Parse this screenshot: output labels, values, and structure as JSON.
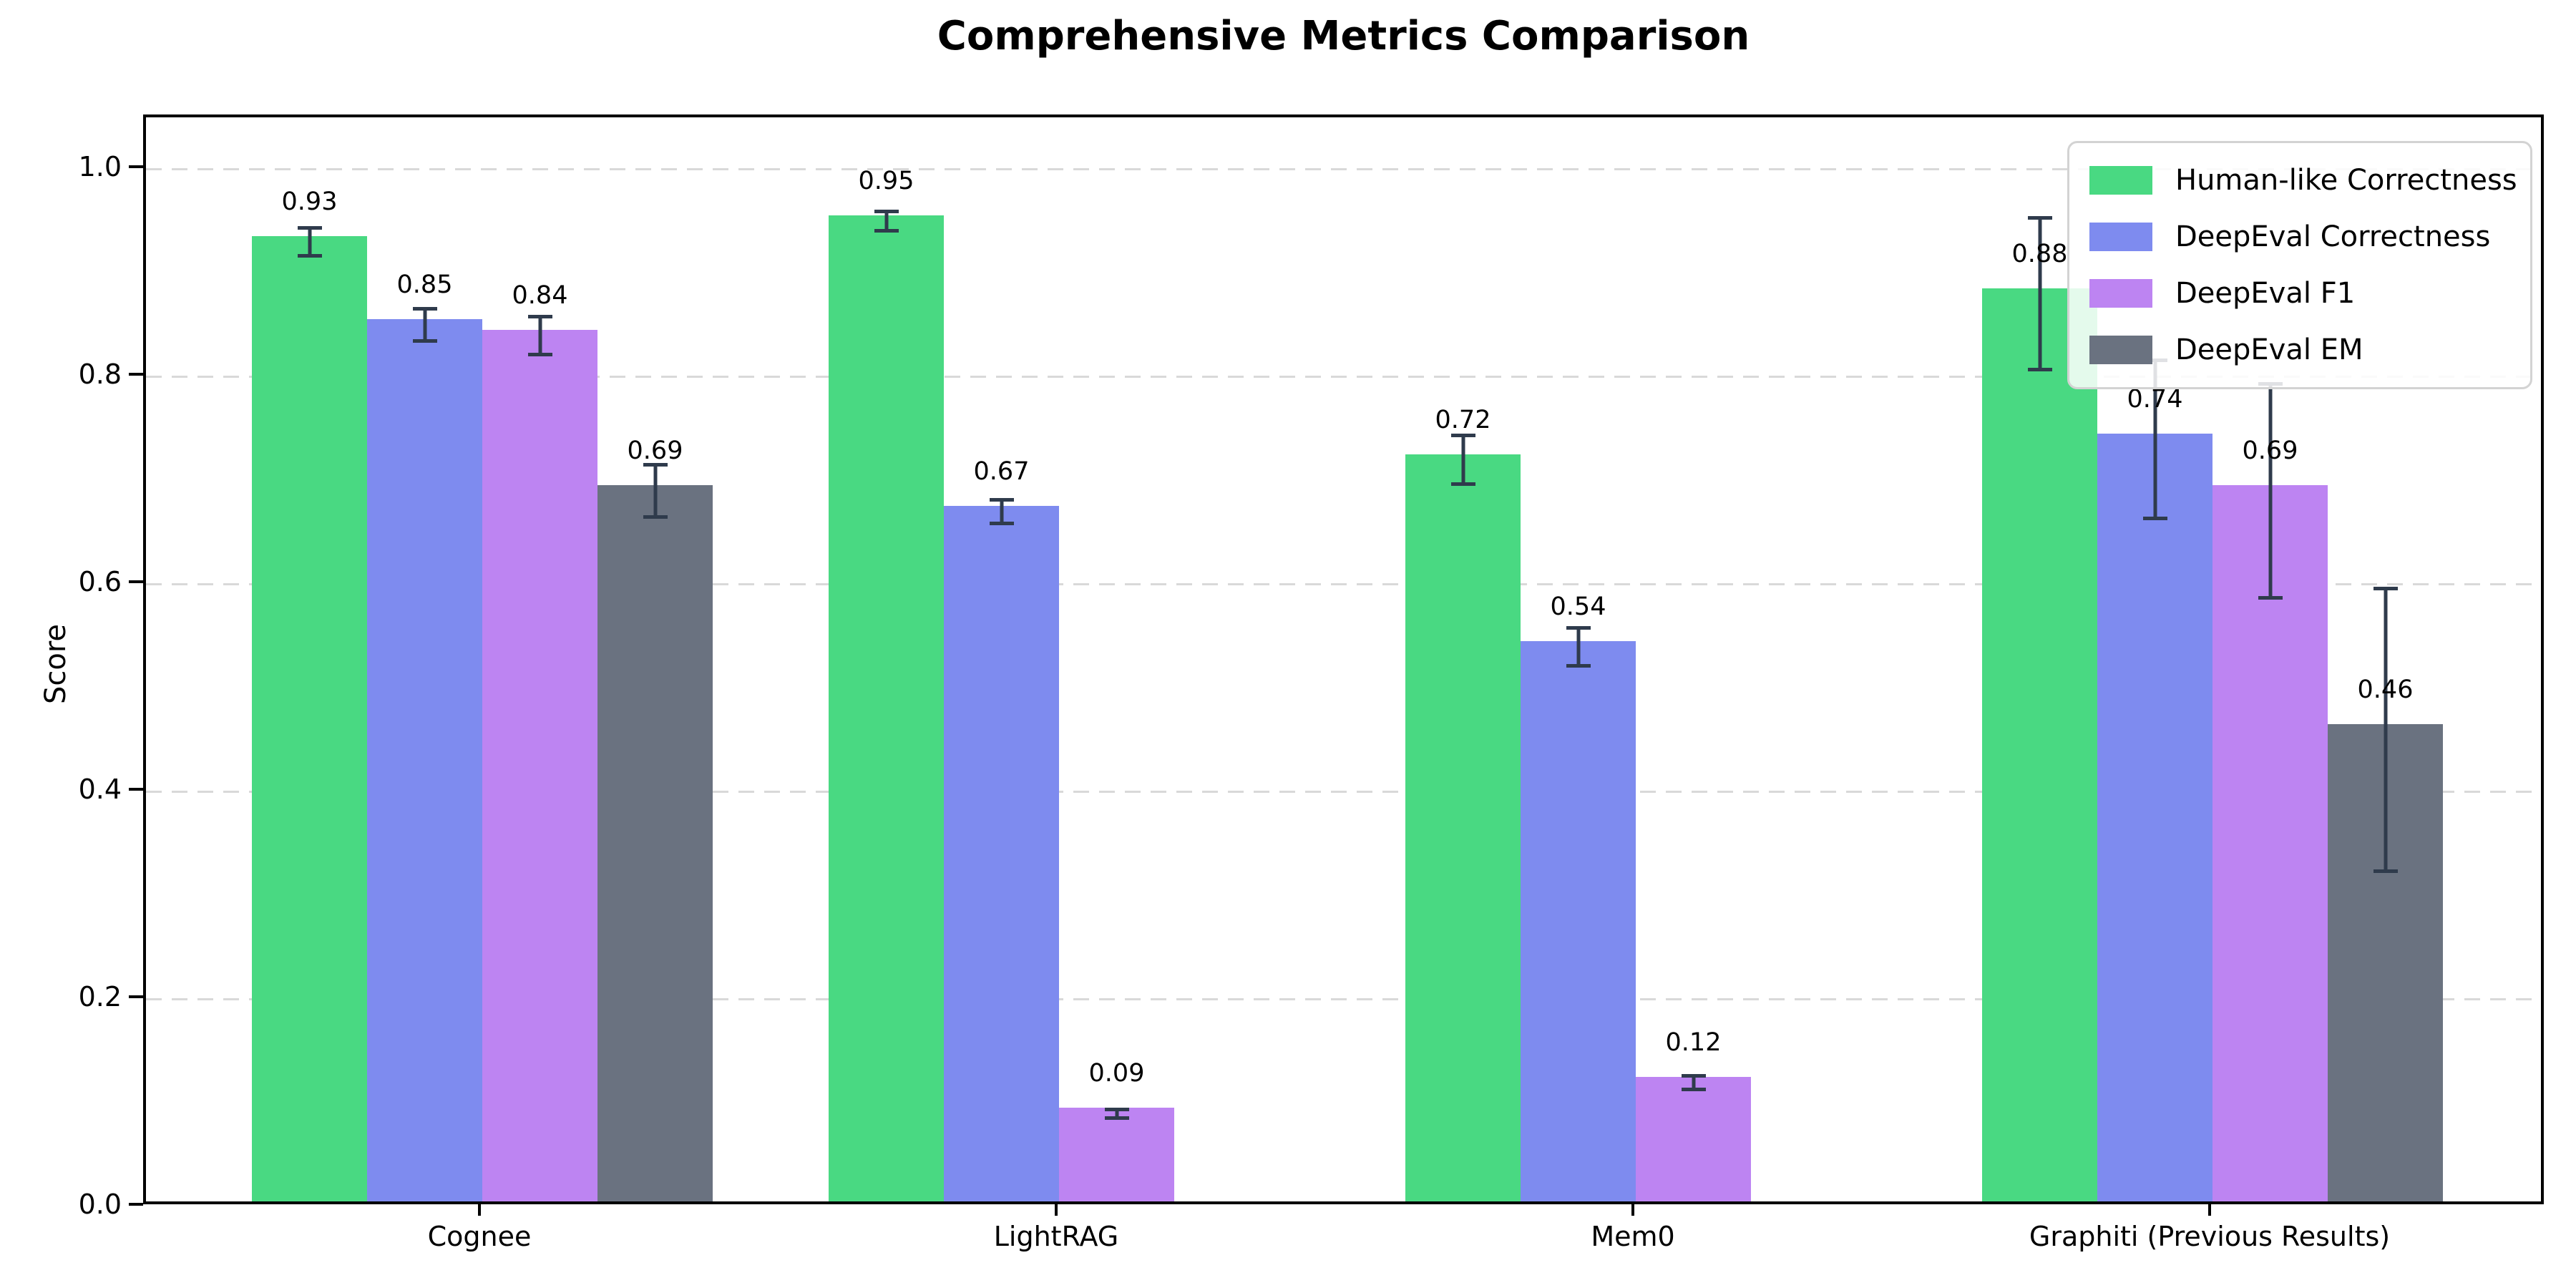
{
  "title": "Comprehensive Metrics Comparison",
  "ylabel": "Score",
  "chart_data": {
    "type": "bar",
    "categories": [
      "Cognee",
      "LightRAG",
      "Mem0",
      "Graphiti (Previous Results)"
    ],
    "series": [
      {
        "name": "Human-like Correctness",
        "color": "#49d982",
        "values": [
          0.93,
          0.95,
          0.72,
          0.88
        ],
        "errors": [
          0.015,
          0.011,
          0.025,
          0.075
        ],
        "bar_labels": [
          "0.93",
          "0.95",
          "0.72",
          "0.88"
        ]
      },
      {
        "name": "DeepEval Correctness",
        "color": "#7e8bef",
        "values": [
          0.85,
          0.67,
          0.54,
          0.74
        ],
        "errors": [
          0.017,
          0.013,
          0.02,
          0.078
        ],
        "bar_labels": [
          "0.85",
          "0.67",
          "0.54",
          "0.74"
        ]
      },
      {
        "name": "DeepEval F1",
        "color": "#bd84f2",
        "values": [
          0.84,
          0.09,
          0.12,
          0.69
        ],
        "errors": [
          0.02,
          0.006,
          0.008,
          0.105
        ],
        "bar_labels": [
          "0.84",
          "0.09",
          "0.12",
          "0.69"
        ]
      },
      {
        "name": "DeepEval EM",
        "color": "#6a7280",
        "values": [
          0.69,
          0.0,
          0.0,
          0.46
        ],
        "errors": [
          0.027,
          0.004,
          0.004,
          0.138
        ],
        "bar_labels": [
          "0.69",
          null,
          null,
          "0.46"
        ]
      }
    ],
    "ylim": [
      0,
      1.05
    ],
    "yticks": [
      {
        "label": "0.0",
        "value": 0.0
      },
      {
        "label": "0.2",
        "value": 0.2
      },
      {
        "label": "0.4",
        "value": 0.4
      },
      {
        "label": "0.6",
        "value": 0.6
      },
      {
        "label": "0.8",
        "value": 0.8
      },
      {
        "label": "1.0",
        "value": 1.0
      }
    ],
    "grid": "horizontal-dashed",
    "legend_position": "upper right",
    "errorbar_color": "#2f3b4c",
    "grid_color": "#d9d9d9"
  }
}
